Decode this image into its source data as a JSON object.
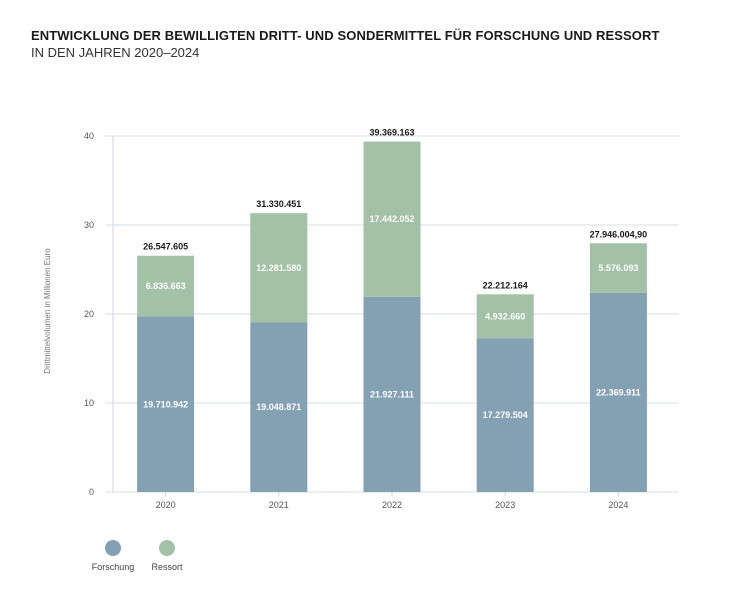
{
  "header": {
    "title": "ENTWICKLUNG DER BEWILLIGTEN DRITT- UND SONDERMITTEL FÜR FORSCHUNG UND RESSORT",
    "subtitle": "IN DEN JAHREN 2020–2024"
  },
  "chart_data": {
    "type": "bar",
    "stacked": true,
    "title": "ENTWICKLUNG DER BEWILLIGTEN DRITT- UND SONDERMITTEL FÜR FORSCHUNG UND RESSORT",
    "subtitle": "IN DEN JAHREN 2020–2024",
    "xlabel": "",
    "ylabel": "Drittmittelvolumen in Millionen Euro",
    "ylim": [
      0,
      40
    ],
    "yticks": [
      0,
      10,
      20,
      30,
      40
    ],
    "ytick_labels": [
      "0",
      "10",
      "20",
      "30",
      "40"
    ],
    "grid": true,
    "legend_position": "bottom-left",
    "categories": [
      "2020",
      "2021",
      "2022",
      "2023",
      "2024"
    ],
    "series": [
      {
        "name": "Forschung",
        "color": "#84a0b3",
        "values": [
          19.710942,
          19.048871,
          21.927111,
          17.279504,
          22.369911
        ],
        "labels": [
          "19.710.942",
          "19.048.871",
          "21.927.111",
          "17.279.504",
          "22.369.911"
        ]
      },
      {
        "name": "Ressort",
        "color": "#a2c1a6",
        "values": [
          6.836663,
          12.28158,
          17.442052,
          4.93266,
          5.576093
        ],
        "labels": [
          "6.836.663",
          "12.281.580",
          "17.442.052",
          "4.932.660",
          "5.576.093"
        ]
      }
    ],
    "totals": [
      26.547605,
      31.330451,
      39.369163,
      22.212164,
      27.9460049
    ],
    "total_labels": [
      "26.547.605",
      "31.330.451",
      "39.369.163",
      "22.212.164",
      "27.946.004,90"
    ]
  },
  "colors": {
    "grid": "#d5dfe8",
    "axis": "#c8d4e0"
  }
}
